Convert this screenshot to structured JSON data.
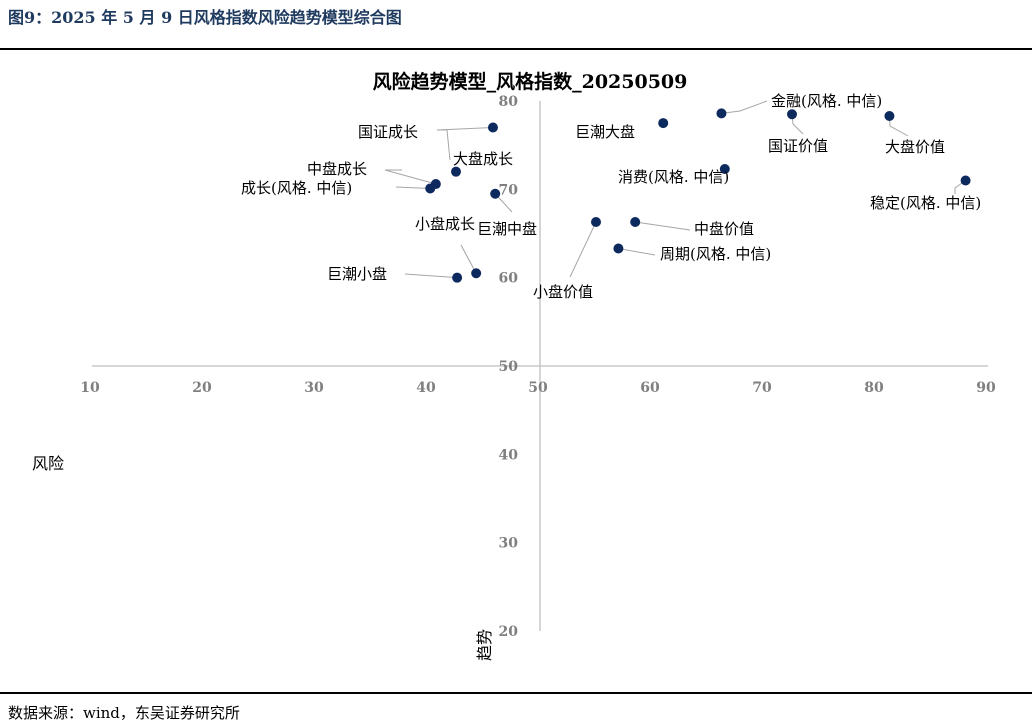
{
  "caption": "图9：2025 年 5 月 9 日风格指数风险趋势模型综合图",
  "source": "数据来源：wind，东吴证券研究所",
  "colors": {
    "point": "#0d2a5e",
    "axis": "#c8c8c8",
    "leader": "#a6a6a6",
    "tick": "#7f7f7f"
  },
  "chart_data": {
    "type": "scatter",
    "title": "风险趋势模型_风格指数_20250509",
    "xlabel": "风险",
    "ylabel": "趋势",
    "xlim": [
      10,
      90
    ],
    "ylim": [
      20,
      80
    ],
    "x_ticks": [
      "10",
      "20",
      "30",
      "40",
      "50",
      "60",
      "70",
      "80",
      "90"
    ],
    "y_ticks": [
      "80",
      "70",
      "60",
      "50",
      "40",
      "30",
      "20"
    ],
    "axis_cross": [
      50,
      50
    ],
    "points": [
      {
        "name": "金融(风格. 中信)",
        "x": 66.2,
        "y": 78.6
      },
      {
        "name": "国证价值",
        "x": 72.5,
        "y": 78.5
      },
      {
        "name": "大盘价值",
        "x": 81.2,
        "y": 78.3
      },
      {
        "name": "稳定(风格. 中信)",
        "x": 88.0,
        "y": 71.0
      },
      {
        "name": "巨潮大盘",
        "x": 61.0,
        "y": 77.5
      },
      {
        "name": "消费(风格. 中信)",
        "x": 66.5,
        "y": 72.3
      },
      {
        "name": "中盘价值",
        "x": 58.5,
        "y": 66.3
      },
      {
        "name": "周期(风格. 中信)",
        "x": 57.0,
        "y": 63.3
      },
      {
        "name": "小盘价值",
        "x": 55.0,
        "y": 66.3
      },
      {
        "name": "国证成长",
        "x": 45.8,
        "y": 77.0
      },
      {
        "name": "大盘成长",
        "x": 42.5,
        "y": 72.0
      },
      {
        "name": "中盘成长",
        "x": 40.7,
        "y": 70.6
      },
      {
        "name": "成长(风格. 中信)",
        "x": 40.2,
        "y": 70.1
      },
      {
        "name": "巨潮中盘",
        "x": 46.0,
        "y": 69.5
      },
      {
        "name": "小盘成长",
        "x": 44.3,
        "y": 60.5
      },
      {
        "name": "巨潮小盘",
        "x": 42.6,
        "y": 60.0
      }
    ]
  }
}
